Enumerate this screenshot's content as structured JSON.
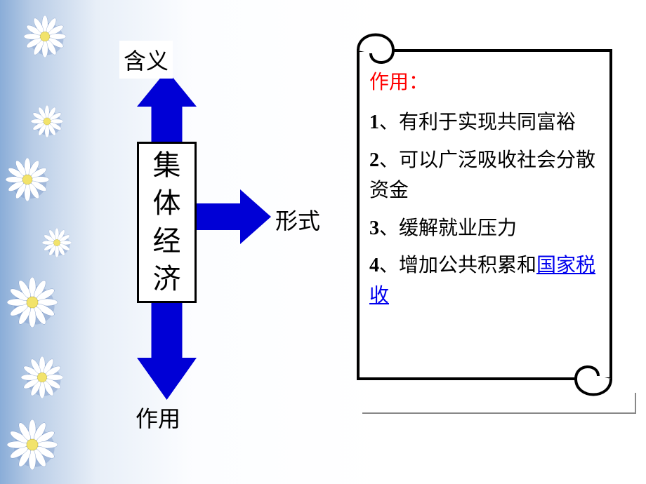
{
  "diagram": {
    "top_label": "含义",
    "bottom_label": "作用",
    "right_label": "形式",
    "center": [
      "集",
      "体",
      "经",
      "济"
    ],
    "arrow_color": "#0000d6",
    "up_arrow": {
      "w": 85,
      "h": 105,
      "head_h": 52,
      "shaft_w": 44
    },
    "down_arrow": {
      "w": 85,
      "h": 140,
      "head_h": 60,
      "shaft_w": 44
    },
    "right_arrow": {
      "w": 108,
      "h": 78,
      "head_w": 44,
      "shaft_h": 38
    }
  },
  "scroll": {
    "title": "作用：",
    "items": [
      {
        "num": "1",
        "text": "、有利于实现共同富裕"
      },
      {
        "num": "2",
        "text": "、可以广泛吸收社会分散资金"
      },
      {
        "num": "3",
        "text": "、缓解就业压力"
      },
      {
        "num": "4",
        "text_pre": "、增加公共积累和",
        "link": "国家税收"
      }
    ],
    "title_color": "#ff0000",
    "text_color": "#000000",
    "link_color": "#0000ee",
    "stroke": "#000000",
    "fill": "#ffffff"
  },
  "flowers": {
    "petal_color": "#ffffff",
    "center_color": "#f2e36b",
    "shadow_color": "#6a8abf"
  },
  "background": {
    "left_color": "#8aadd8",
    "right_color": "#ffffff"
  }
}
